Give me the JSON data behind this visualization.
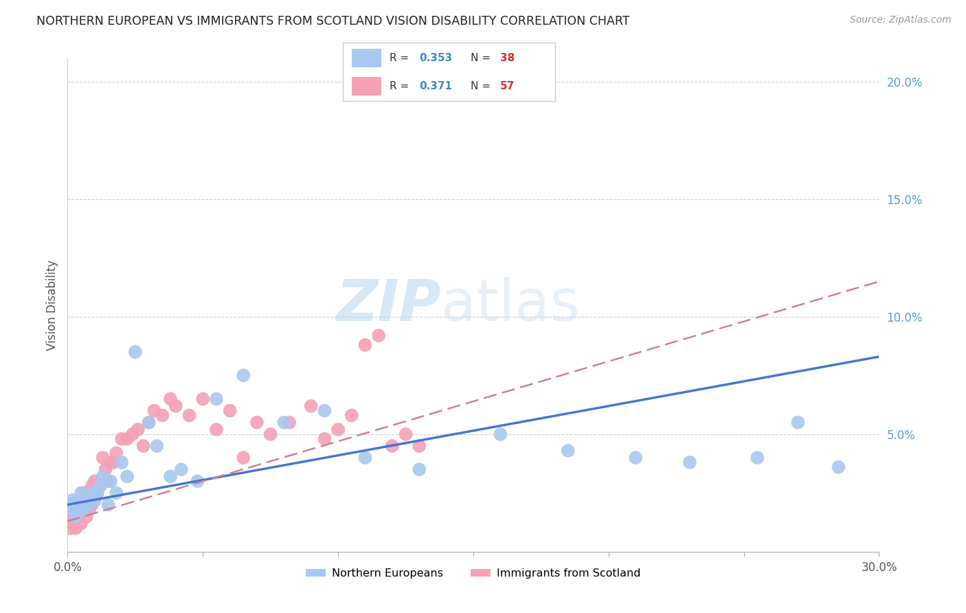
{
  "title": "NORTHERN EUROPEAN VS IMMIGRANTS FROM SCOTLAND VISION DISABILITY CORRELATION CHART",
  "source": "Source: ZipAtlas.com",
  "ylabel": "Vision Disability",
  "xmin": 0.0,
  "xmax": 0.3,
  "ymin": 0.0,
  "ymax": 0.21,
  "x_ticks": [
    0.0,
    0.05,
    0.1,
    0.15,
    0.2,
    0.25,
    0.3
  ],
  "x_tick_labels": [
    "0.0%",
    "",
    "",
    "",
    "",
    "",
    "30.0%"
  ],
  "y_ticks_right": [
    0.05,
    0.1,
    0.15,
    0.2
  ],
  "y_tick_labels_right": [
    "5.0%",
    "10.0%",
    "15.0%",
    "20.0%"
  ],
  "blue_color": "#a8c8f0",
  "pink_color": "#f4a0b5",
  "watermark_zip": "ZIP",
  "watermark_atlas": "atlas",
  "ne_x": [
    0.001,
    0.002,
    0.002,
    0.003,
    0.004,
    0.005,
    0.006,
    0.007,
    0.008,
    0.009,
    0.01,
    0.011,
    0.012,
    0.013,
    0.015,
    0.016,
    0.018,
    0.02,
    0.022,
    0.025,
    0.03,
    0.033,
    0.038,
    0.042,
    0.048,
    0.055,
    0.065,
    0.08,
    0.095,
    0.11,
    0.13,
    0.16,
    0.185,
    0.21,
    0.23,
    0.255,
    0.27,
    0.285
  ],
  "ne_y": [
    0.02,
    0.018,
    0.022,
    0.015,
    0.02,
    0.025,
    0.018,
    0.022,
    0.02,
    0.025,
    0.022,
    0.025,
    0.028,
    0.032,
    0.02,
    0.03,
    0.025,
    0.038,
    0.032,
    0.085,
    0.055,
    0.045,
    0.032,
    0.035,
    0.03,
    0.065,
    0.075,
    0.055,
    0.06,
    0.04,
    0.035,
    0.05,
    0.043,
    0.04,
    0.038,
    0.04,
    0.055,
    0.036
  ],
  "sc_x": [
    0.001,
    0.001,
    0.002,
    0.002,
    0.003,
    0.003,
    0.003,
    0.004,
    0.004,
    0.005,
    0.005,
    0.006,
    0.006,
    0.007,
    0.007,
    0.007,
    0.008,
    0.008,
    0.009,
    0.009,
    0.01,
    0.01,
    0.011,
    0.012,
    0.013,
    0.014,
    0.015,
    0.016,
    0.017,
    0.018,
    0.02,
    0.022,
    0.024,
    0.026,
    0.028,
    0.03,
    0.032,
    0.035,
    0.038,
    0.04,
    0.045,
    0.05,
    0.055,
    0.06,
    0.065,
    0.07,
    0.075,
    0.082,
    0.09,
    0.095,
    0.1,
    0.105,
    0.11,
    0.115,
    0.12,
    0.125,
    0.13
  ],
  "sc_y": [
    0.01,
    0.015,
    0.012,
    0.018,
    0.01,
    0.015,
    0.02,
    0.015,
    0.022,
    0.012,
    0.018,
    0.018,
    0.025,
    0.015,
    0.02,
    0.025,
    0.018,
    0.025,
    0.02,
    0.028,
    0.022,
    0.03,
    0.025,
    0.028,
    0.04,
    0.035,
    0.03,
    0.038,
    0.038,
    0.042,
    0.048,
    0.048,
    0.05,
    0.052,
    0.045,
    0.055,
    0.06,
    0.058,
    0.065,
    0.062,
    0.058,
    0.065,
    0.052,
    0.06,
    0.04,
    0.055,
    0.05,
    0.055,
    0.062,
    0.048,
    0.052,
    0.058,
    0.088,
    0.092,
    0.045,
    0.05,
    0.045
  ],
  "ne_line_x": [
    0.0,
    0.3
  ],
  "ne_line_y": [
    0.02,
    0.083
  ],
  "sc_line_x": [
    0.0,
    0.3
  ],
  "sc_line_y": [
    0.013,
    0.115
  ]
}
